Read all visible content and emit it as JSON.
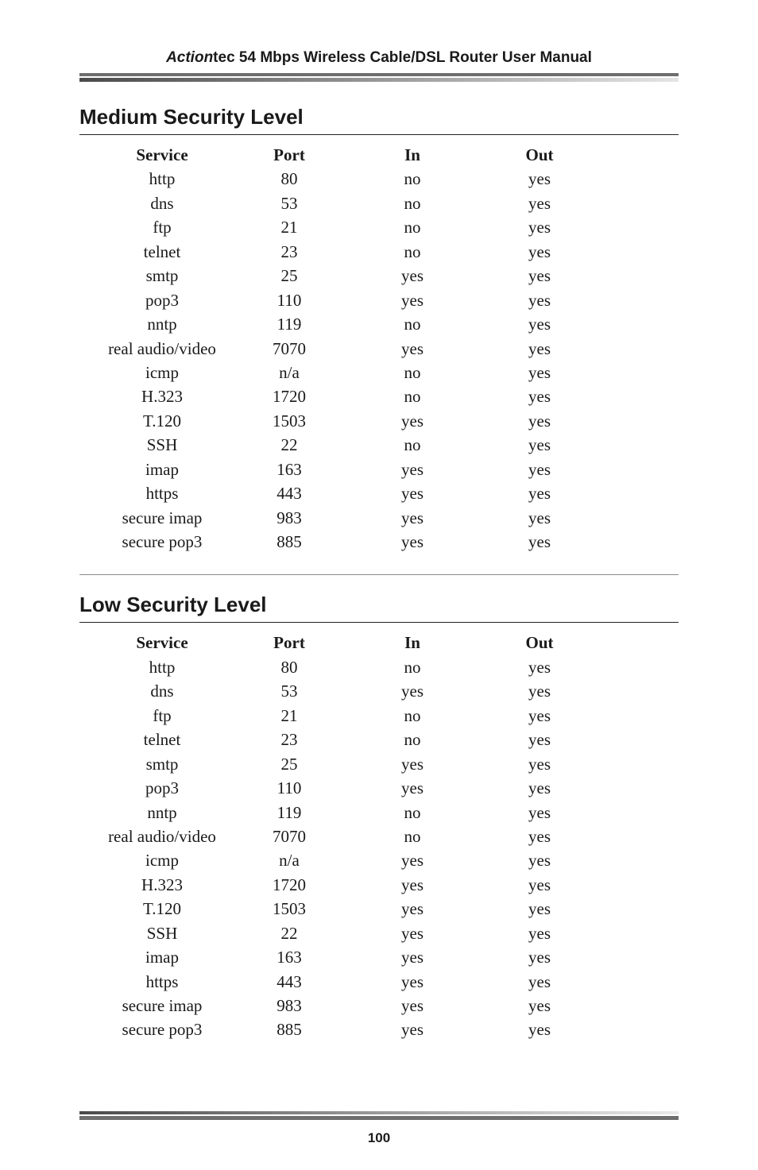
{
  "header": {
    "brand_italic": "Action",
    "brand_rest": "tec 54 Mbps Wireless Cable/DSL Router User Manual"
  },
  "page_number": "100",
  "columns": {
    "service": "Service",
    "port": "Port",
    "in": "In",
    "out": "Out"
  },
  "sections": [
    {
      "title": "Medium Security Level",
      "rows": [
        {
          "service": "http",
          "port": "80",
          "in": "no",
          "out": "yes"
        },
        {
          "service": "dns",
          "port": "53",
          "in": "no",
          "out": "yes"
        },
        {
          "service": "ftp",
          "port": "21",
          "in": "no",
          "out": "yes"
        },
        {
          "service": "telnet",
          "port": "23",
          "in": "no",
          "out": "yes"
        },
        {
          "service": "smtp",
          "port": "25",
          "in": "yes",
          "out": "yes"
        },
        {
          "service": "pop3",
          "port": "110",
          "in": "yes",
          "out": "yes"
        },
        {
          "service": "nntp",
          "port": "119",
          "in": "no",
          "out": "yes"
        },
        {
          "service": "real audio/video",
          "port": "7070",
          "in": "yes",
          "out": "yes"
        },
        {
          "service": "icmp",
          "port": "n/a",
          "in": "no",
          "out": "yes"
        },
        {
          "service": "H.323",
          "port": "1720",
          "in": "no",
          "out": "yes"
        },
        {
          "service": "T.120",
          "port": "1503",
          "in": "yes",
          "out": "yes"
        },
        {
          "service": "SSH",
          "port": "22",
          "in": "no",
          "out": "yes"
        },
        {
          "service": "imap",
          "port": "163",
          "in": "yes",
          "out": "yes"
        },
        {
          "service": "https",
          "port": "443",
          "in": "yes",
          "out": "yes"
        },
        {
          "service": "secure imap",
          "port": "983",
          "in": "yes",
          "out": "yes"
        },
        {
          "service": "secure pop3",
          "port": "885",
          "in": "yes",
          "out": "yes"
        }
      ]
    },
    {
      "title": "Low Security Level",
      "rows": [
        {
          "service": "http",
          "port": "80",
          "in": "no",
          "out": "yes"
        },
        {
          "service": "dns",
          "port": "53",
          "in": "yes",
          "out": "yes"
        },
        {
          "service": "ftp",
          "port": "21",
          "in": "no",
          "out": "yes"
        },
        {
          "service": "telnet",
          "port": "23",
          "in": "no",
          "out": "yes"
        },
        {
          "service": "smtp",
          "port": "25",
          "in": "yes",
          "out": "yes"
        },
        {
          "service": "pop3",
          "port": "110",
          "in": "yes",
          "out": "yes"
        },
        {
          "service": "nntp",
          "port": "119",
          "in": "no",
          "out": "yes"
        },
        {
          "service": "real audio/video",
          "port": "7070",
          "in": "no",
          "out": "yes"
        },
        {
          "service": "icmp",
          "port": "n/a",
          "in": "yes",
          "out": "yes"
        },
        {
          "service": "H.323",
          "port": "1720",
          "in": "yes",
          "out": "yes"
        },
        {
          "service": "T.120",
          "port": "1503",
          "in": "yes",
          "out": "yes"
        },
        {
          "service": "SSH",
          "port": "22",
          "in": "yes",
          "out": "yes"
        },
        {
          "service": "imap",
          "port": "163",
          "in": "yes",
          "out": "yes"
        },
        {
          "service": "https",
          "port": "443",
          "in": "yes",
          "out": "yes"
        },
        {
          "service": "secure imap",
          "port": "983",
          "in": "yes",
          "out": "yes"
        },
        {
          "service": "secure pop3",
          "port": "885",
          "in": "yes",
          "out": "yes"
        }
      ]
    }
  ]
}
